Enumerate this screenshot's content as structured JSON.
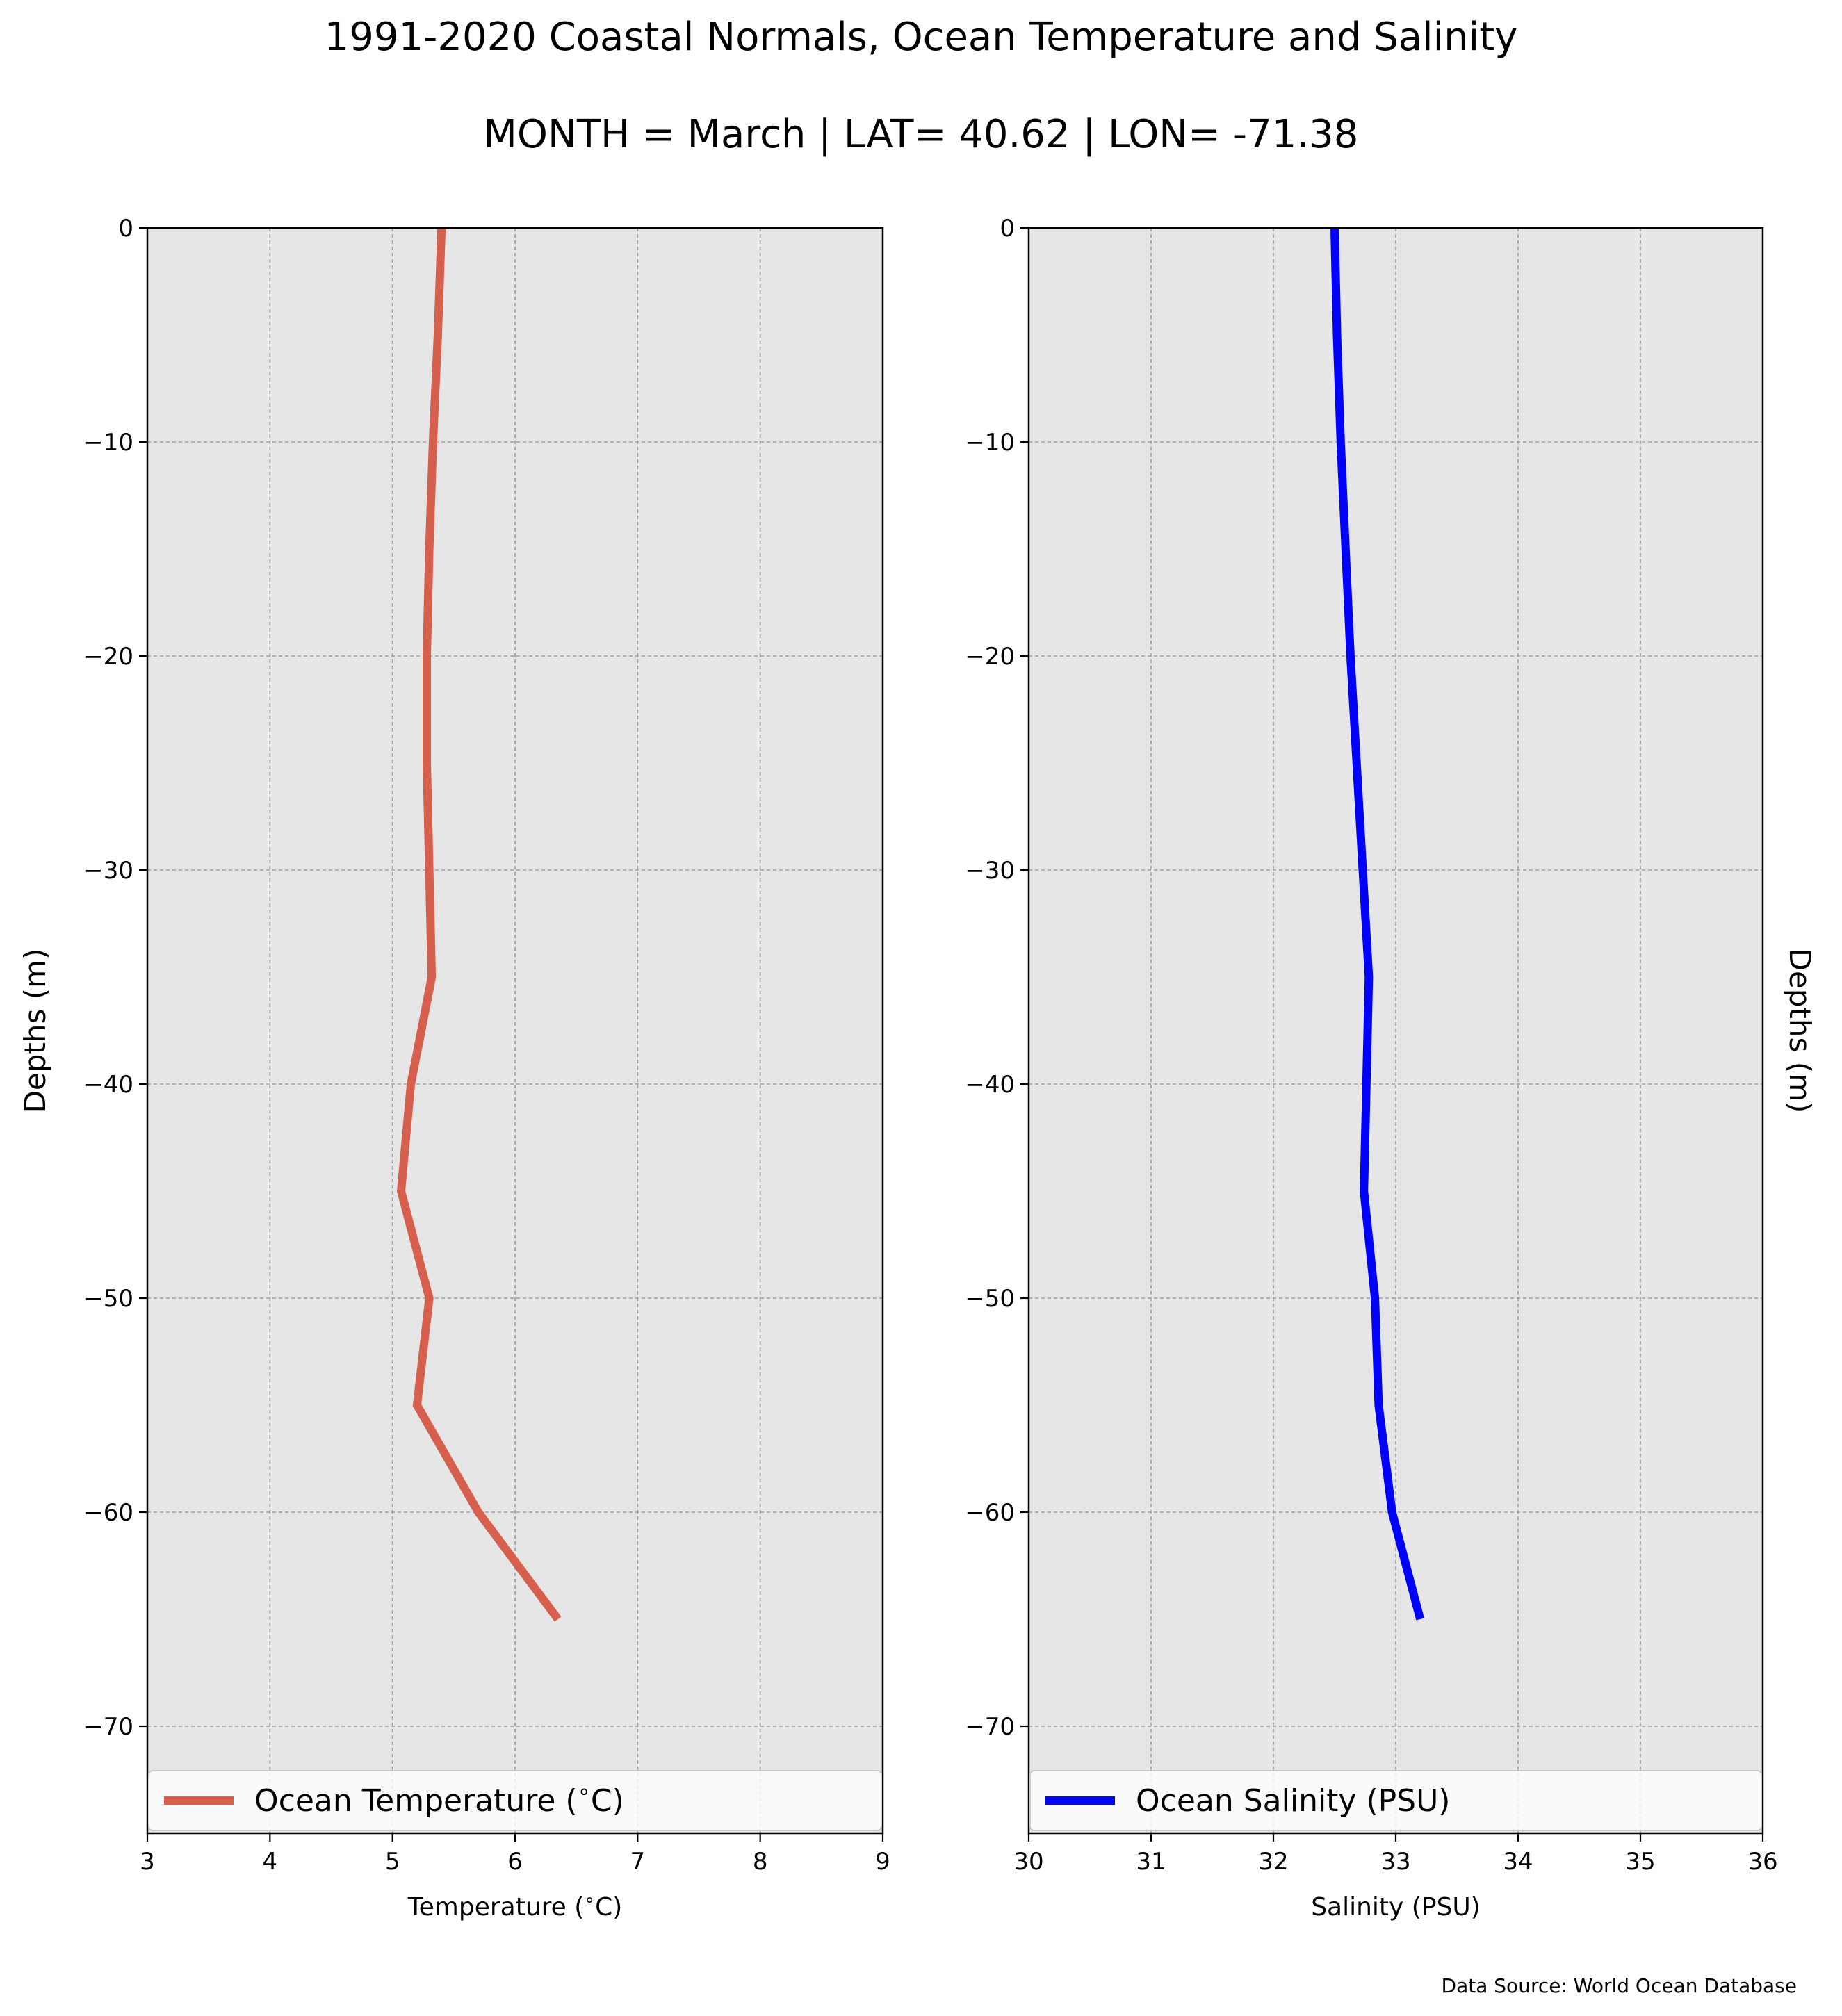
{
  "title": "1991-2020 Coastal Normals, Ocean Temperature and Salinity",
  "subtitle": "MONTH = March | LAT= 40.62 | LON= -71.38",
  "source_note": "Data Source: World Ocean Database",
  "chart_data": [
    {
      "type": "line",
      "xlabel": "Temperature ($^\\circ$C)",
      "ylabel": "Depths (m)",
      "xlim": [
        3,
        9
      ],
      "ylim": [
        -75,
        0
      ],
      "xticks": [
        3,
        4,
        5,
        6,
        7,
        8,
        9
      ],
      "yticks": [
        0,
        -10,
        -20,
        -30,
        -40,
        -50,
        -60,
        -70
      ],
      "grid": true,
      "legend_placement": "bottom",
      "color": "#d6604d",
      "series": [
        {
          "name": "Ocean Temperature ($^\\circ$C)",
          "x": [
            5.4,
            5.37,
            5.33,
            5.3,
            5.28,
            5.28,
            5.3,
            5.32,
            5.15,
            5.07,
            5.3,
            5.2,
            5.7,
            6.35
          ],
          "y": [
            0,
            -5,
            -10,
            -15,
            -20,
            -25,
            -30,
            -35,
            -40,
            -45,
            -50,
            -55,
            -60,
            -65
          ]
        }
      ]
    },
    {
      "type": "line",
      "xlabel": "Salinity (PSU)",
      "ylabel": "Depths (m)",
      "xlim": [
        30,
        36
      ],
      "ylim": [
        -75,
        0
      ],
      "xticks": [
        30,
        31,
        32,
        33,
        34,
        35,
        36
      ],
      "yticks": [
        0,
        -10,
        -20,
        -30,
        -40,
        -50,
        -60,
        -70
      ],
      "grid": true,
      "legend_placement": "bottom",
      "color": "#0000ff",
      "series": [
        {
          "name": "Ocean Salinity (PSU)",
          "x": [
            32.5,
            32.52,
            32.55,
            32.59,
            32.63,
            32.68,
            32.73,
            32.78,
            32.76,
            32.74,
            32.83,
            32.86,
            32.97,
            33.2
          ],
          "y": [
            0,
            -5,
            -10,
            -15,
            -20,
            -25,
            -30,
            -35,
            -40,
            -45,
            -50,
            -55,
            -60,
            -65
          ]
        }
      ]
    }
  ]
}
